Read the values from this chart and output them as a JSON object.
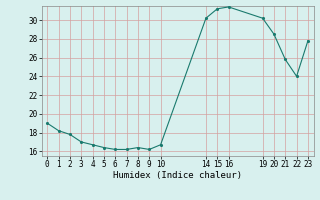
{
  "x": [
    0,
    1,
    2,
    3,
    4,
    5,
    6,
    7,
    8,
    9,
    10,
    14,
    15,
    16,
    19,
    20,
    21,
    22,
    23
  ],
  "y": [
    19.0,
    18.2,
    17.8,
    17.0,
    16.7,
    16.4,
    16.2,
    16.2,
    16.4,
    16.2,
    16.7,
    30.2,
    31.2,
    31.4,
    30.2,
    28.5,
    25.8,
    24.0,
    27.8
  ],
  "line_color": "#1a7a6e",
  "marker_color": "#1a7a6e",
  "bg_color": "#d8f0ee",
  "grid_color": "#b8d8d4",
  "xlabel": "Humidex (Indice chaleur)",
  "xlim": [
    -0.5,
    23.5
  ],
  "ylim": [
    15.5,
    31.5
  ],
  "yticks": [
    16,
    18,
    20,
    22,
    24,
    26,
    28,
    30
  ],
  "xticks": [
    0,
    1,
    2,
    3,
    4,
    5,
    6,
    7,
    8,
    9,
    10,
    14,
    15,
    16,
    19,
    20,
    21,
    22,
    23
  ],
  "axis_fontsize": 6.5,
  "tick_fontsize": 5.5
}
